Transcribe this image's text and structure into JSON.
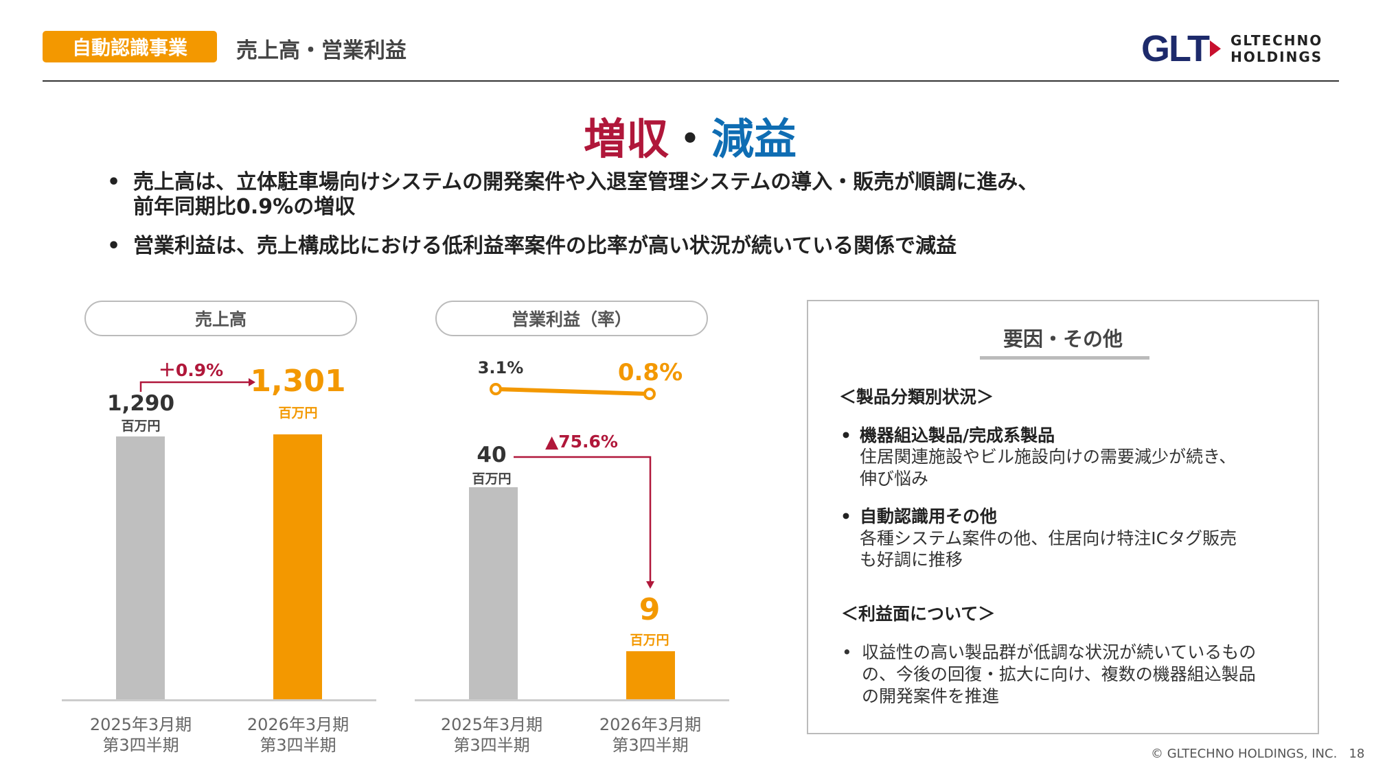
{
  "header": {
    "tag": "自動認識事業",
    "title": "売上高・営業利益",
    "logo_mark": "GLT",
    "logo_line1": "GLTECHNO",
    "logo_line2": "HOLDINGS"
  },
  "headline": {
    "part1": "増収",
    "sep": "・",
    "part2": "減益"
  },
  "bullets": [
    "売上高は、立体駐車場向けシステムの開発案件や入退室管理システムの導入・販売が順調に進み、",
    "前年同期比0.9%の増収",
    "営業利益は、売上構成比における低利益率案件の比率が高い状況が続いている関係で減益"
  ],
  "bullet_symbol": "•",
  "chart_data": [
    {
      "type": "bar",
      "title": "売上高",
      "categories": [
        "2025年3月期\n第3四半期",
        "2026年3月期\n第3四半期"
      ],
      "cat_line1": [
        "2025年3月期",
        "2026年3月期"
      ],
      "cat_line2": [
        "第3四半期",
        "第3四半期"
      ],
      "values": [
        1290,
        1301
      ],
      "value_labels": [
        "1,290",
        "1,301"
      ],
      "unit": "百万円",
      "change": "＋0.9%",
      "colors": [
        "#bfbfbf",
        "#f39800"
      ]
    },
    {
      "type": "bar",
      "title": "営業利益（率）",
      "categories": [
        "2025年3月期\n第3四半期",
        "2026年3月期\n第3四半期"
      ],
      "cat_line1": [
        "2025年3月期",
        "2026年3月期"
      ],
      "cat_line2": [
        "第3四半期",
        "第3四半期"
      ],
      "values": [
        40,
        9
      ],
      "value_labels": [
        "40",
        "9"
      ],
      "unit": "百万円",
      "change": "▲75.6%",
      "rate_series": {
        "name": "営業利益率",
        "values": [
          3.1,
          0.8
        ],
        "labels": [
          "3.1%",
          "0.8%"
        ]
      },
      "colors": [
        "#bfbfbf",
        "#f39800"
      ]
    }
  ],
  "factors": {
    "title": "要因・その他",
    "section1": "＜製品分類別状況＞",
    "item1_title": "機器組込製品/完成系製品",
    "item1_lines": [
      "住居関連施設やビル施設向けの需要減少が続き、",
      "伸び悩み"
    ],
    "item2_title": "自動認識用その他",
    "item2_lines": [
      "各種システム案件の他、住居向け特注ICタグ販売",
      "も好調に推移"
    ],
    "section2": "＜利益面について＞",
    "item3_lines": [
      "収益性の高い製品群が低調な状況が続いているもの",
      "の、今後の回復・拡大に向け、複数の機器組込製品",
      "の開発案件を推進"
    ]
  },
  "footer": {
    "copyright": "© GLTECHNO HOLDINGS, INC.",
    "page": "18"
  },
  "colors": {
    "accent": "#f39800",
    "red": "#b0173a",
    "blue": "#0f6db3",
    "gray": "#bfbfbf"
  }
}
